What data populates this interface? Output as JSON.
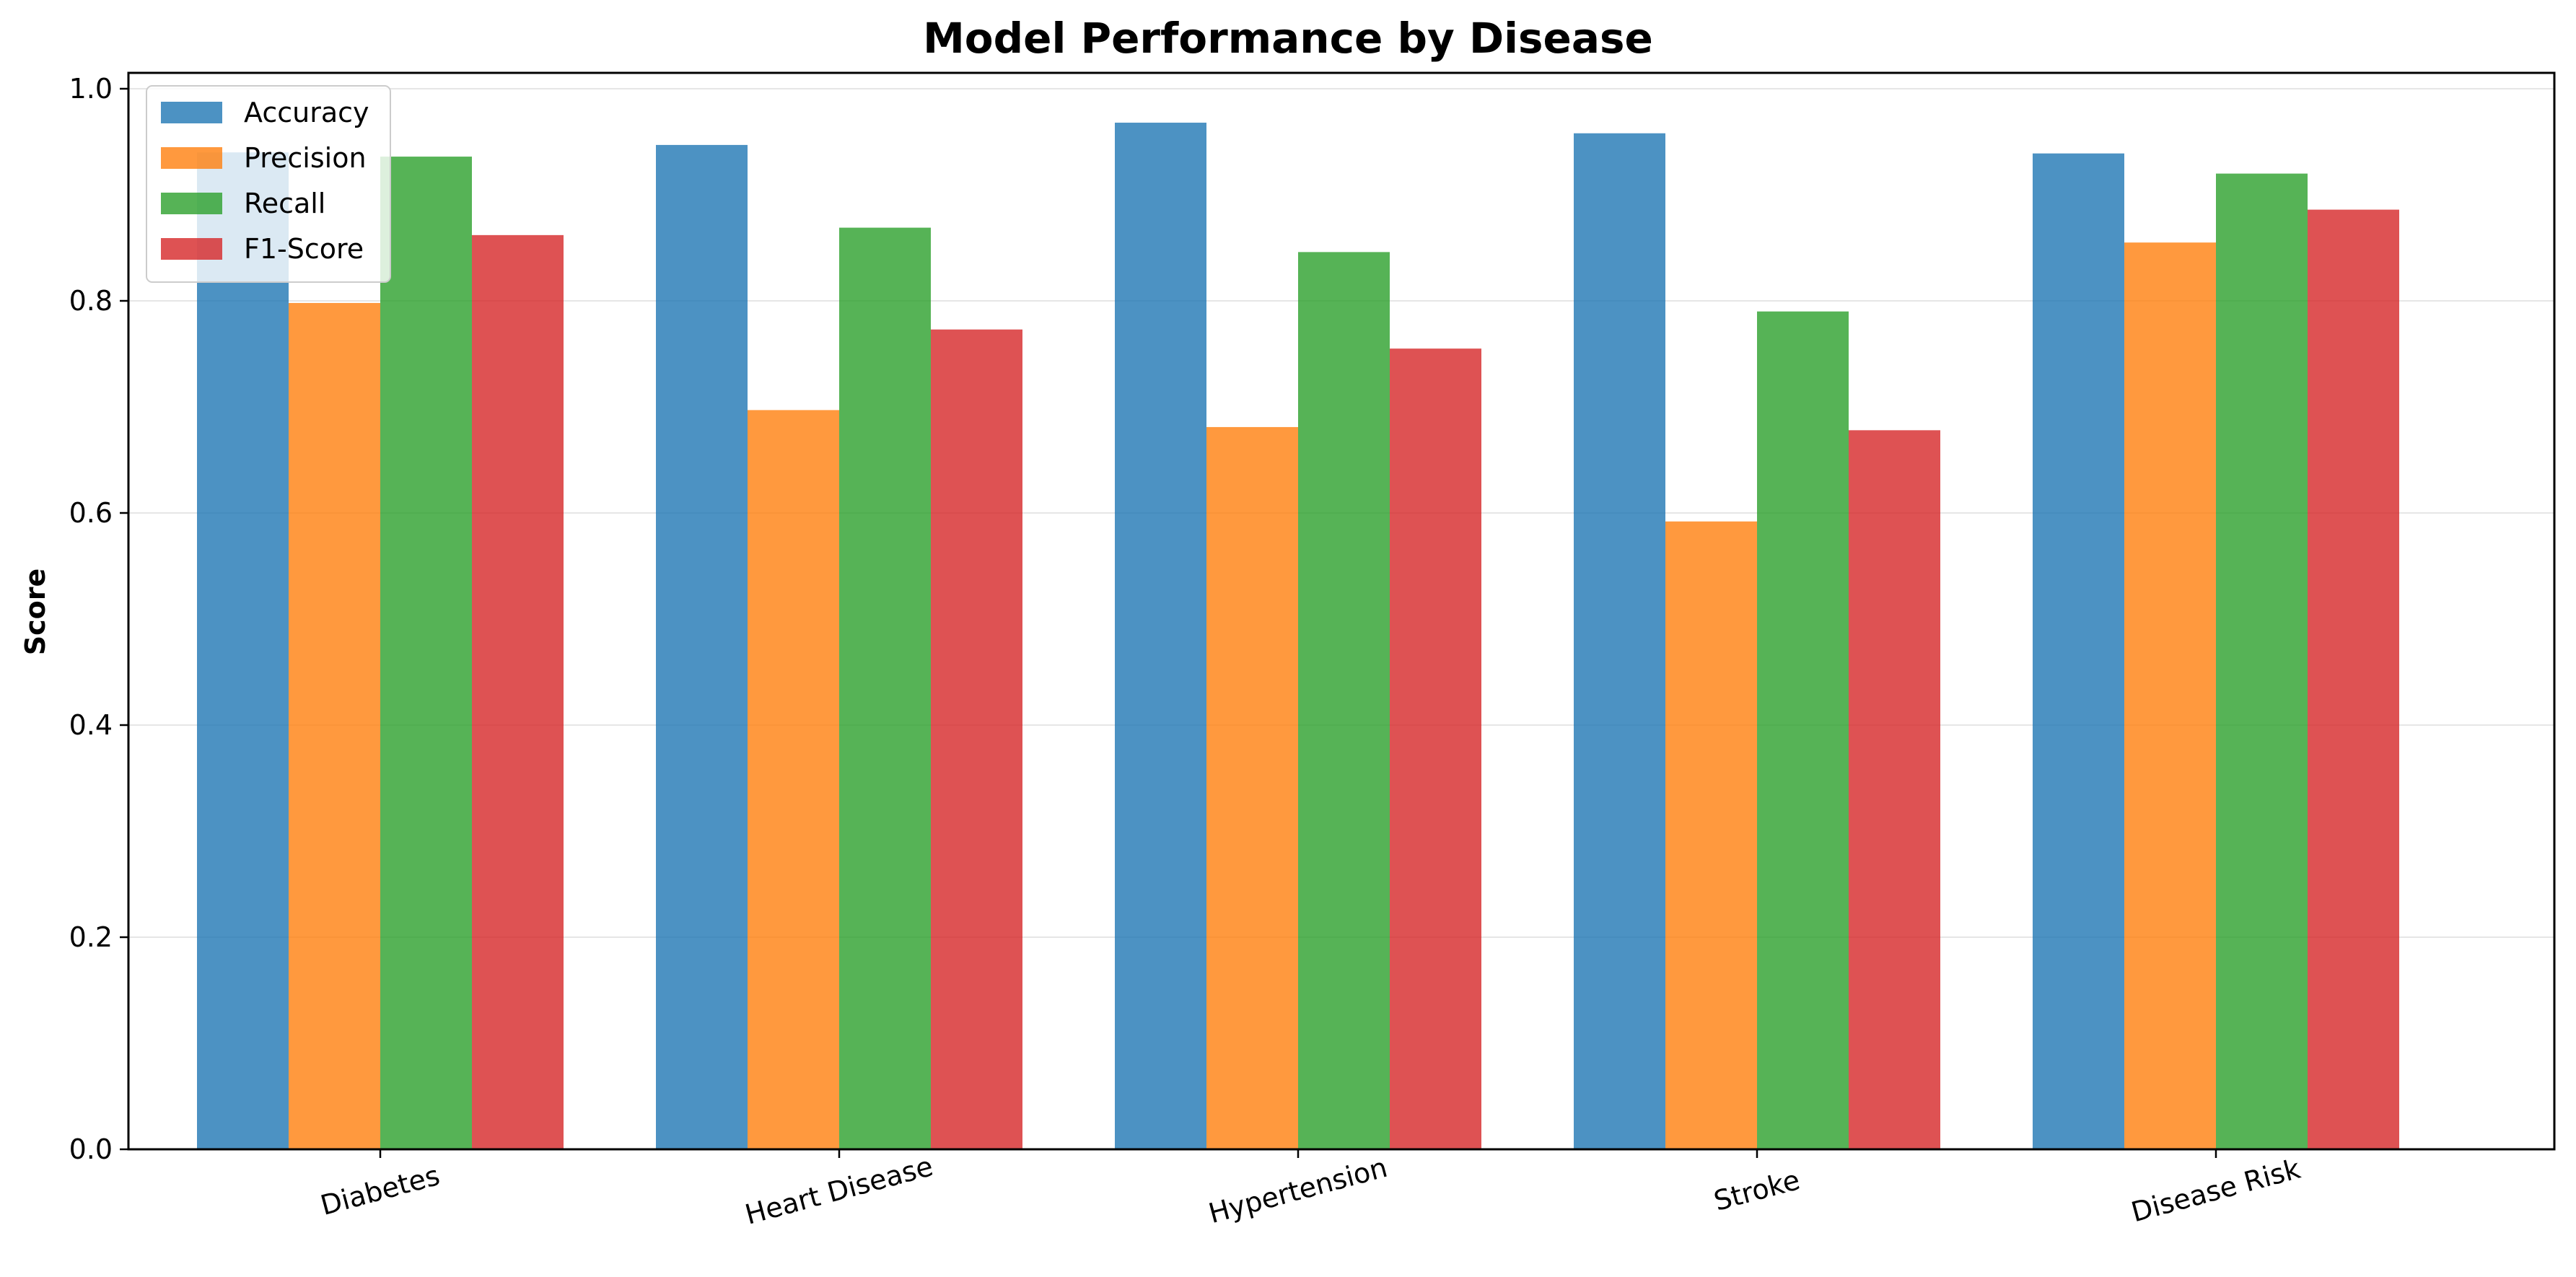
{
  "chart_data": {
    "type": "bar",
    "title": "Model Performance by Disease",
    "xlabel": "",
    "ylabel": "Score",
    "categories": [
      "Diabetes",
      "Heart Disease",
      "Hypertension",
      "Stroke",
      "Disease Risk"
    ],
    "series": [
      {
        "name": "Accuracy",
        "color": "#1f77b4",
        "values": [
          0.94,
          0.947,
          0.968,
          0.958,
          0.939
        ]
      },
      {
        "name": "Precision",
        "color": "#ff7f0e",
        "values": [
          0.798,
          0.697,
          0.681,
          0.592,
          0.855
        ]
      },
      {
        "name": "Recall",
        "color": "#2ca02c",
        "values": [
          0.936,
          0.869,
          0.846,
          0.79,
          0.92
        ]
      },
      {
        "name": "F1-Score",
        "color": "#d62728",
        "values": [
          0.862,
          0.773,
          0.755,
          0.678,
          0.886
        ]
      }
    ],
    "ylim": [
      0,
      1.0
    ],
    "yticks": [
      "0.0",
      "0.2",
      "0.4",
      "0.6",
      "0.8",
      "1.0"
    ],
    "grid": true,
    "legend_position": "top-left"
  }
}
